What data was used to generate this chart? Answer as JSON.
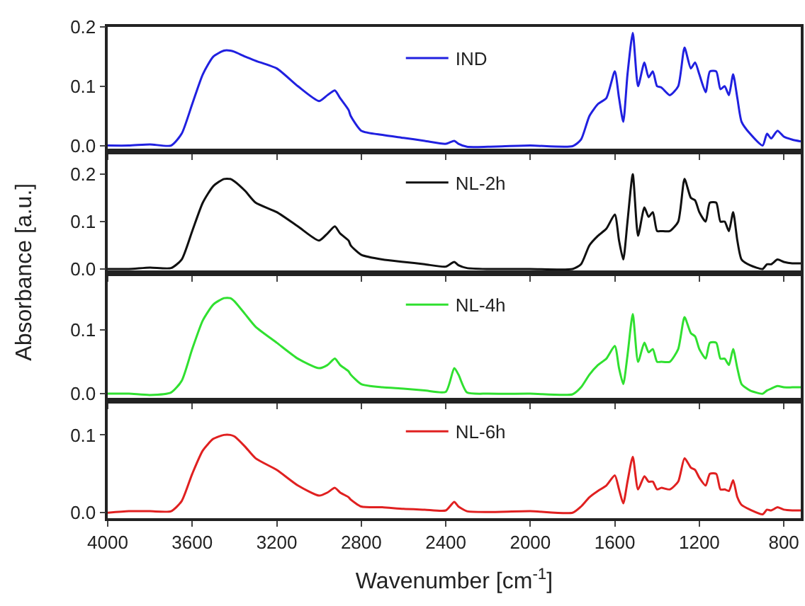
{
  "chart_data": [
    {
      "type": "line",
      "ylabel": "Absorbance [a.u.]",
      "legend": "top",
      "tick_labels": "y",
      "grid": false,
      "line_style": "solid",
      "marker": "none",
      "x": [
        4000,
        3900,
        3800,
        3700,
        3650,
        3600,
        3550,
        3500,
        3450,
        3420,
        3400,
        3350,
        3300,
        3200,
        3100,
        3000,
        2960,
        2925,
        2900,
        2860,
        2850,
        2800,
        2700,
        2600,
        2500,
        2400,
        2360,
        2340,
        2300,
        2200,
        2000,
        1800,
        1760,
        1720,
        1680,
        1640,
        1600,
        1580,
        1560,
        1540,
        1515,
        1490,
        1460,
        1440,
        1420,
        1400,
        1380,
        1340,
        1300,
        1270,
        1240,
        1220,
        1200,
        1170,
        1150,
        1120,
        1100,
        1080,
        1060,
        1040,
        1020,
        1000,
        960,
        900,
        880,
        860,
        830,
        800,
        760,
        720
      ],
      "xlim": [
        4000,
        720
      ],
      "xticks": [
        4000,
        3600,
        3200,
        2800,
        2400,
        2000,
        1600,
        1200,
        800
      ],
      "ylim": [
        -0.01,
        0.2
      ],
      "yticks": [
        {
          "value": 0,
          "label": "0.0"
        },
        {
          "value": 0.1,
          "label": "0.1"
        },
        {
          "value": 0.2,
          "label": "0.2"
        }
      ],
      "series": [
        {
          "name": "IND",
          "color": "#2020e0",
          "values": [
            0,
            0,
            0.002,
            0,
            0.02,
            0.07,
            0.12,
            0.15,
            0.16,
            0.16,
            0.158,
            0.15,
            0.143,
            0.13,
            0.1,
            0.075,
            0.085,
            0.093,
            0.08,
            0.06,
            0.05,
            0.025,
            0.018,
            0.013,
            0.008,
            0.003,
            0.008,
            0.003,
            -0.002,
            -0.002,
            0,
            -0.001,
            0.01,
            0.05,
            0.07,
            0.08,
            0.125,
            0.08,
            0.04,
            0.12,
            0.19,
            0.1,
            0.14,
            0.115,
            0.125,
            0.1,
            0.098,
            0.085,
            0.1,
            0.165,
            0.13,
            0.14,
            0.12,
            0.09,
            0.125,
            0.125,
            0.095,
            0.1,
            0.085,
            0.12,
            0.08,
            0.04,
            0.02,
            0,
            0.02,
            0.012,
            0.025,
            0.015,
            0.01,
            0.007
          ]
        }
      ]
    },
    {
      "type": "line",
      "legend": "top",
      "tick_labels": "y",
      "grid": false,
      "line_style": "solid",
      "marker": "none",
      "x": [
        4000,
        3900,
        3800,
        3700,
        3650,
        3600,
        3550,
        3500,
        3450,
        3420,
        3400,
        3350,
        3300,
        3200,
        3100,
        3000,
        2960,
        2925,
        2900,
        2860,
        2850,
        2800,
        2700,
        2600,
        2500,
        2400,
        2360,
        2340,
        2300,
        2200,
        2000,
        1800,
        1760,
        1720,
        1680,
        1640,
        1600,
        1580,
        1560,
        1540,
        1515,
        1490,
        1460,
        1440,
        1420,
        1400,
        1380,
        1340,
        1300,
        1270,
        1240,
        1220,
        1200,
        1170,
        1150,
        1120,
        1100,
        1080,
        1060,
        1040,
        1020,
        1000,
        960,
        900,
        880,
        860,
        830,
        800,
        760,
        720
      ],
      "xlim": [
        4000,
        720
      ],
      "xticks": [
        4000,
        3600,
        3200,
        2800,
        2400,
        2000,
        1600,
        1200,
        800
      ],
      "ylim": [
        -0.009,
        0.248
      ],
      "yticks": [
        {
          "value": 0,
          "label": "0.0"
        },
        {
          "value": 0.1,
          "label": "0.1"
        },
        {
          "value": 0.2,
          "label": "0.2"
        }
      ],
      "series": [
        {
          "name": "NL-2h",
          "color": "#101010",
          "values": [
            0,
            0,
            0.003,
            0.002,
            0.02,
            0.08,
            0.14,
            0.175,
            0.19,
            0.19,
            0.185,
            0.165,
            0.14,
            0.12,
            0.09,
            0.06,
            0.075,
            0.09,
            0.075,
            0.06,
            0.05,
            0.03,
            0.02,
            0.015,
            0.01,
            0.005,
            0.015,
            0.008,
            0.002,
            0,
            0,
            0,
            0.01,
            0.05,
            0.07,
            0.085,
            0.115,
            0.06,
            0.02,
            0.1,
            0.2,
            0.07,
            0.13,
            0.11,
            0.12,
            0.08,
            0.08,
            0.08,
            0.1,
            0.19,
            0.15,
            0.145,
            0.12,
            0.1,
            0.14,
            0.14,
            0.1,
            0.1,
            0.08,
            0.12,
            0.06,
            0.02,
            0.008,
            0,
            0.01,
            0.01,
            0.02,
            0.015,
            0.012,
            0.012
          ]
        }
      ]
    },
    {
      "type": "line",
      "legend": "top",
      "tick_labels": "y",
      "grid": false,
      "line_style": "solid",
      "marker": "none",
      "x": [
        4000,
        3900,
        3800,
        3700,
        3650,
        3600,
        3550,
        3500,
        3450,
        3420,
        3400,
        3350,
        3300,
        3200,
        3100,
        3000,
        2960,
        2925,
        2900,
        2860,
        2850,
        2800,
        2700,
        2600,
        2500,
        2400,
        2360,
        2340,
        2300,
        2200,
        2000,
        1800,
        1760,
        1720,
        1680,
        1640,
        1600,
        1580,
        1560,
        1540,
        1515,
        1490,
        1460,
        1440,
        1420,
        1400,
        1380,
        1340,
        1300,
        1270,
        1240,
        1220,
        1200,
        1170,
        1150,
        1120,
        1100,
        1080,
        1060,
        1040,
        1020,
        1000,
        960,
        900,
        880,
        860,
        830,
        800,
        760,
        720
      ],
      "xlim": [
        4000,
        720
      ],
      "xticks": [
        4000,
        3600,
        3200,
        2800,
        2400,
        2000,
        1600,
        1200,
        800
      ],
      "ylim": [
        -0.011,
        0.189
      ],
      "yticks": [
        {
          "value": 0,
          "label": "0.0"
        },
        {
          "value": 0.1,
          "label": "0.1"
        }
      ],
      "series": [
        {
          "name": "NL-4h",
          "color": "#30e030",
          "values": [
            0,
            0,
            -0.002,
            0.002,
            0.02,
            0.07,
            0.115,
            0.14,
            0.15,
            0.15,
            0.145,
            0.125,
            0.105,
            0.08,
            0.055,
            0.04,
            0.045,
            0.055,
            0.045,
            0.035,
            0.03,
            0.015,
            0.01,
            0.008,
            0.005,
            0.003,
            0.04,
            0.03,
            0.002,
            0,
            0,
            -0.001,
            0.01,
            0.03,
            0.045,
            0.055,
            0.075,
            0.04,
            0.015,
            0.06,
            0.125,
            0.05,
            0.08,
            0.065,
            0.07,
            0.05,
            0.05,
            0.05,
            0.07,
            0.12,
            0.095,
            0.09,
            0.07,
            0.055,
            0.08,
            0.08,
            0.055,
            0.055,
            0.045,
            0.07,
            0.04,
            0.015,
            0.005,
            0,
            0.005,
            0.008,
            0.012,
            0.01,
            0.01,
            0.01
          ]
        }
      ]
    },
    {
      "type": "line",
      "xlabel": "Wavenumber [cm$^{-1}$]",
      "legend": "top",
      "grid": false,
      "line_style": "solid",
      "marker": "none",
      "x": [
        4000,
        3900,
        3800,
        3700,
        3650,
        3600,
        3550,
        3500,
        3450,
        3420,
        3400,
        3350,
        3300,
        3200,
        3100,
        3000,
        2960,
        2925,
        2900,
        2860,
        2850,
        2800,
        2700,
        2600,
        2500,
        2400,
        2360,
        2340,
        2300,
        2200,
        2000,
        1800,
        1760,
        1720,
        1680,
        1640,
        1600,
        1580,
        1560,
        1540,
        1515,
        1490,
        1460,
        1440,
        1420,
        1400,
        1380,
        1340,
        1300,
        1270,
        1240,
        1220,
        1200,
        1170,
        1150,
        1120,
        1100,
        1080,
        1060,
        1040,
        1020,
        1000,
        960,
        900,
        880,
        860,
        830,
        800,
        760,
        720
      ],
      "xlim": [
        4000,
        720
      ],
      "xticks": [
        4000,
        3600,
        3200,
        2800,
        2400,
        2000,
        1600,
        1200,
        800
      ],
      "ylim": [
        -0.007,
        0.144
      ],
      "yticks": [
        {
          "value": 0,
          "label": "0.0"
        },
        {
          "value": 0.1,
          "label": "0.1"
        }
      ],
      "series": [
        {
          "name": "NL-6h",
          "color": "#e02020",
          "values": [
            0,
            0.002,
            0.002,
            0.002,
            0.015,
            0.05,
            0.08,
            0.095,
            0.1,
            0.1,
            0.098,
            0.085,
            0.07,
            0.055,
            0.035,
            0.022,
            0.026,
            0.032,
            0.026,
            0.02,
            0.017,
            0.008,
            0.007,
            0.005,
            0.004,
            0.003,
            0.014,
            0.008,
            0.002,
            0.001,
            0.002,
            0,
            0.008,
            0.02,
            0.028,
            0.035,
            0.048,
            0.03,
            0.012,
            0.04,
            0.072,
            0.03,
            0.047,
            0.04,
            0.04,
            0.03,
            0.032,
            0.03,
            0.04,
            0.07,
            0.058,
            0.055,
            0.045,
            0.035,
            0.05,
            0.05,
            0.03,
            0.03,
            0.028,
            0.042,
            0.02,
            0.01,
            0.004,
            -0.002,
            0.004,
            0.003,
            0.007,
            0.004,
            0.003,
            0.003
          ]
        }
      ]
    }
  ]
}
